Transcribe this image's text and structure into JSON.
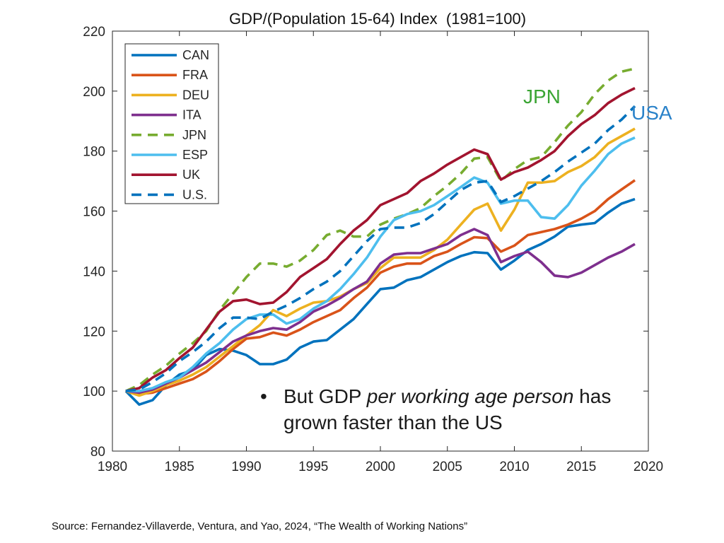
{
  "chart_data": {
    "type": "line",
    "title": "GDP/(Population 15-64) Index  (1981=100)",
    "xlabel": "",
    "ylabel": "",
    "xlim": [
      1980,
      2020
    ],
    "ylim": [
      80,
      220
    ],
    "xticks": [
      1980,
      1985,
      1990,
      1995,
      2000,
      2005,
      2010,
      2015,
      2020
    ],
    "yticks": [
      80,
      100,
      120,
      140,
      160,
      180,
      200,
      220
    ],
    "grid": false,
    "legend_position": "top-left",
    "x": [
      1981,
      1982,
      1983,
      1984,
      1985,
      1986,
      1987,
      1988,
      1989,
      1990,
      1991,
      1992,
      1993,
      1994,
      1995,
      1996,
      1997,
      1998,
      1999,
      2000,
      2001,
      2002,
      2003,
      2004,
      2005,
      2006,
      2007,
      2008,
      2009,
      2010,
      2011,
      2012,
      2013,
      2014,
      2015,
      2016,
      2017,
      2018,
      2019
    ],
    "series": [
      {
        "name": "CAN",
        "color": "#0072BD",
        "dash": false,
        "values": [
          100,
          95.5,
          97,
          102,
          105.5,
          107,
          112,
          114,
          113.5,
          112,
          109,
          109,
          110.5,
          114.5,
          116.5,
          117,
          120.5,
          124,
          129,
          134,
          134.5,
          137,
          138,
          140.5,
          143,
          145,
          146.3,
          146,
          140.5,
          143.5,
          147,
          149,
          151.5,
          154.8,
          155.5,
          156,
          159.5,
          162.5,
          164
        ]
      },
      {
        "name": "FRA",
        "color": "#D95319",
        "dash": false,
        "values": [
          100,
          99,
          99.5,
          101,
          102.5,
          104,
          106.5,
          110,
          114,
          117.5,
          118,
          119.5,
          118.5,
          120.5,
          123,
          125,
          127,
          131,
          134.5,
          139.5,
          141.5,
          142.5,
          142.5,
          145,
          146.5,
          149,
          151.3,
          151,
          146.5,
          148.5,
          152,
          153,
          154,
          155.5,
          157.5,
          160,
          164,
          167.2,
          170.3
        ]
      },
      {
        "name": "DEU",
        "color": "#EDB120",
        "dash": false,
        "values": [
          100,
          98.5,
          100,
          102,
          103.5,
          105.5,
          108,
          111.5,
          115,
          118.5,
          122,
          127,
          125,
          127.5,
          129.5,
          130,
          131.5,
          134,
          136,
          141,
          144.5,
          144.5,
          144.5,
          147,
          150.5,
          155.5,
          160.5,
          162.5,
          153.5,
          160.5,
          169.5,
          169.5,
          170,
          173,
          175,
          178,
          182.5,
          185,
          187.5
        ]
      },
      {
        "name": "ITA",
        "color": "#7E2F8E",
        "dash": false,
        "values": [
          100,
          99.5,
          100.5,
          102.5,
          104.5,
          107,
          109.5,
          113,
          116.5,
          118.5,
          120,
          121,
          120.5,
          123,
          126.5,
          128.5,
          131,
          134,
          136.5,
          142.5,
          145.5,
          146,
          146,
          147.5,
          149,
          152,
          154,
          152,
          143,
          145,
          146.5,
          143,
          138.5,
          138,
          139.5,
          142,
          144.5,
          146.5,
          149
        ]
      },
      {
        "name": "JPN",
        "color": "#77AC30",
        "dash": true,
        "values": [
          100,
          102,
          105.5,
          108.5,
          112.5,
          116,
          120,
          127,
          132.5,
          138,
          142.5,
          142.5,
          141.5,
          143.5,
          147,
          152,
          153.5,
          151.5,
          151.5,
          155.5,
          157.5,
          159,
          161,
          165,
          168.5,
          172.5,
          177.5,
          178,
          170,
          174,
          177,
          178,
          183,
          188.5,
          193,
          199,
          203.5,
          206.5,
          207.5
        ]
      },
      {
        "name": "ESP",
        "color": "#4DBEEE",
        "dash": false,
        "values": [
          100,
          100,
          101,
          103,
          104.5,
          108,
          112.5,
          116,
          120.5,
          124,
          125.5,
          125.5,
          122.5,
          124,
          127.5,
          130,
          134,
          139,
          144.5,
          151.5,
          157,
          159,
          160,
          162,
          165,
          168,
          171.2,
          169.5,
          162.5,
          163.5,
          163.5,
          158,
          157.5,
          162,
          168.5,
          173.5,
          179,
          182.5,
          184.5
        ]
      },
      {
        "name": "UK",
        "color": "#A2142F",
        "dash": false,
        "values": [
          100,
          101,
          104.5,
          107,
          111,
          114.5,
          120.5,
          126.5,
          130,
          130.5,
          129,
          129.5,
          133,
          138,
          141,
          144,
          149,
          153.5,
          157,
          162,
          164,
          166,
          170,
          172.5,
          175.5,
          178,
          180.5,
          179,
          170.5,
          173,
          174.5,
          177,
          180,
          185,
          189,
          192,
          196,
          198.8,
          201
        ]
      },
      {
        "name": "U.S.",
        "color": "#0072BD",
        "dash": true,
        "values": [
          100,
          100.5,
          103,
          106,
          110,
          113,
          116.5,
          121,
          124.5,
          124.5,
          124,
          126.5,
          128.5,
          131,
          134,
          136.5,
          140,
          145,
          150,
          154,
          154.5,
          154.5,
          156,
          159,
          163,
          167,
          169.5,
          170,
          163,
          165,
          167.5,
          170,
          173,
          176.5,
          179.5,
          182.5,
          187,
          190.5,
          195
        ]
      }
    ],
    "annotations": [
      {
        "text": "JPN",
        "color": "#3BA534"
      },
      {
        "text": "USA",
        "color": "#2A82C9"
      }
    ]
  },
  "bullet": {
    "symbol": "•",
    "prefix": "But GDP ",
    "emphasis": "per working age person",
    "suffix": " has grown faster than the US"
  },
  "source_note": "Source: Fernandez-Villaverde, Ventura, and Yao, 2024, “The Wealth of Working Nations”"
}
